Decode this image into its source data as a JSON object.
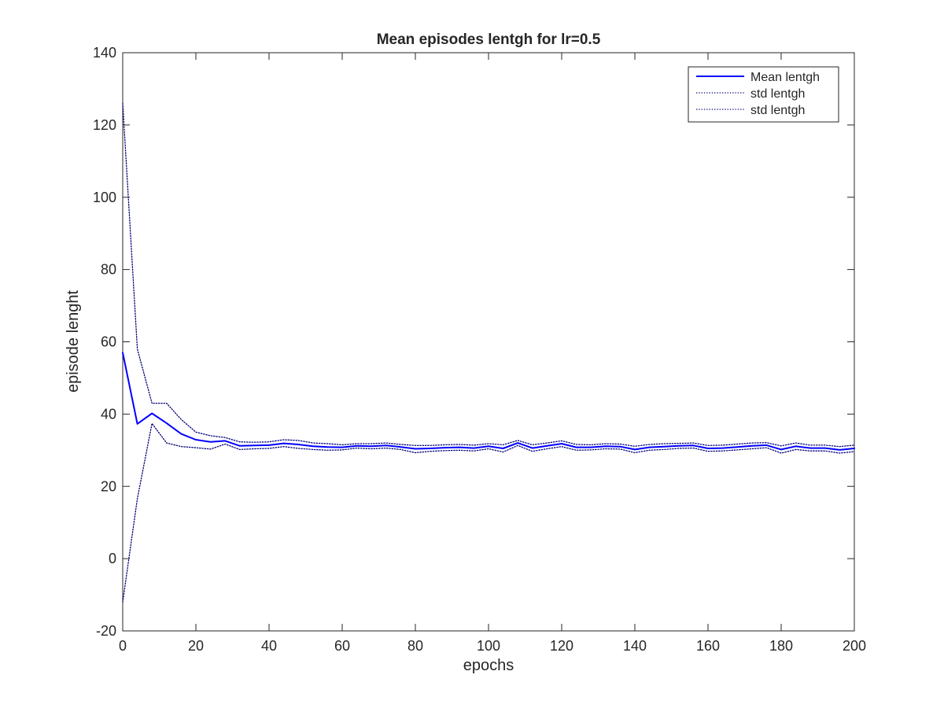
{
  "chart_data": {
    "type": "line",
    "title": "Mean episodes lentgh for lr=0.5",
    "xlabel": "epochs",
    "ylabel": "episode lenght",
    "xlim": [
      0,
      200
    ],
    "ylim": [
      -20,
      140
    ],
    "xticks": [
      0,
      20,
      40,
      60,
      80,
      100,
      120,
      140,
      160,
      180,
      200
    ],
    "yticks": [
      -20,
      0,
      20,
      40,
      60,
      80,
      100,
      120,
      140
    ],
    "xtick_labels": [
      "0",
      "20",
      "40",
      "60",
      "80",
      "100",
      "120",
      "140",
      "160",
      "180",
      "200"
    ],
    "ytick_labels": [
      "-20",
      "0",
      "20",
      "40",
      "60",
      "80",
      "100",
      "120",
      "140"
    ],
    "grid": false,
    "legend_position": "top-right",
    "x": [
      0,
      4,
      8,
      12,
      16,
      20,
      24,
      28,
      32,
      36,
      40,
      44,
      48,
      52,
      56,
      60,
      64,
      68,
      72,
      76,
      80,
      84,
      88,
      92,
      96,
      100,
      104,
      108,
      112,
      116,
      120,
      124,
      128,
      132,
      136,
      140,
      144,
      148,
      152,
      156,
      160,
      164,
      168,
      172,
      176,
      180,
      184,
      188,
      192,
      196,
      200
    ],
    "series": [
      {
        "name": "Mean lentgh",
        "style": "solid",
        "color": "#0000ff",
        "values": [
          57,
          37.3,
          40.2,
          37.5,
          34.5,
          32.9,
          32.3,
          32.6,
          31.2,
          31.3,
          31.4,
          31.9,
          31.6,
          31.1,
          30.9,
          30.8,
          31.2,
          31.1,
          31.3,
          30.9,
          30.4,
          30.5,
          30.7,
          30.8,
          30.6,
          31.1,
          30.5,
          32.0,
          30.6,
          31.2,
          31.8,
          30.8,
          30.8,
          31.1,
          31.0,
          30.2,
          30.8,
          31.0,
          31.2,
          31.3,
          30.5,
          30.6,
          30.9,
          31.2,
          31.4,
          30.2,
          31.1,
          30.6,
          30.6,
          30.1,
          30.5
        ]
      },
      {
        "name": "std lentgh",
        "style": "dotted",
        "color": "#00007a",
        "values": [
          126,
          58,
          43,
          43,
          38.5,
          35,
          34,
          33.5,
          32.3,
          32.2,
          32.3,
          32.9,
          32.7,
          32,
          31.8,
          31.5,
          31.8,
          31.8,
          32,
          31.6,
          31.3,
          31.3,
          31.5,
          31.6,
          31.4,
          31.8,
          31.5,
          32.7,
          31.5,
          32,
          32.6,
          31.6,
          31.5,
          31.8,
          31.7,
          31.1,
          31.6,
          31.8,
          31.9,
          32,
          31.3,
          31.4,
          31.7,
          32,
          32.1,
          31.2,
          32,
          31.4,
          31.4,
          31,
          31.4
        ]
      },
      {
        "name": "std lentgh",
        "style": "dotted",
        "color": "#00007a",
        "values": [
          -12,
          16.6,
          37.4,
          32,
          31,
          30.7,
          30.3,
          31.7,
          30.2,
          30.4,
          30.5,
          31,
          30.5,
          30.2,
          30,
          30.1,
          30.6,
          30.4,
          30.6,
          30.2,
          29.3,
          29.7,
          29.9,
          30,
          29.8,
          30.4,
          29.5,
          31.3,
          29.7,
          30.4,
          31,
          30,
          30.1,
          30.4,
          30.3,
          29.3,
          30,
          30.2,
          30.5,
          30.6,
          29.7,
          29.8,
          30.1,
          30.4,
          30.7,
          29.2,
          30.2,
          29.8,
          29.8,
          29.2,
          29.6
        ]
      }
    ]
  }
}
